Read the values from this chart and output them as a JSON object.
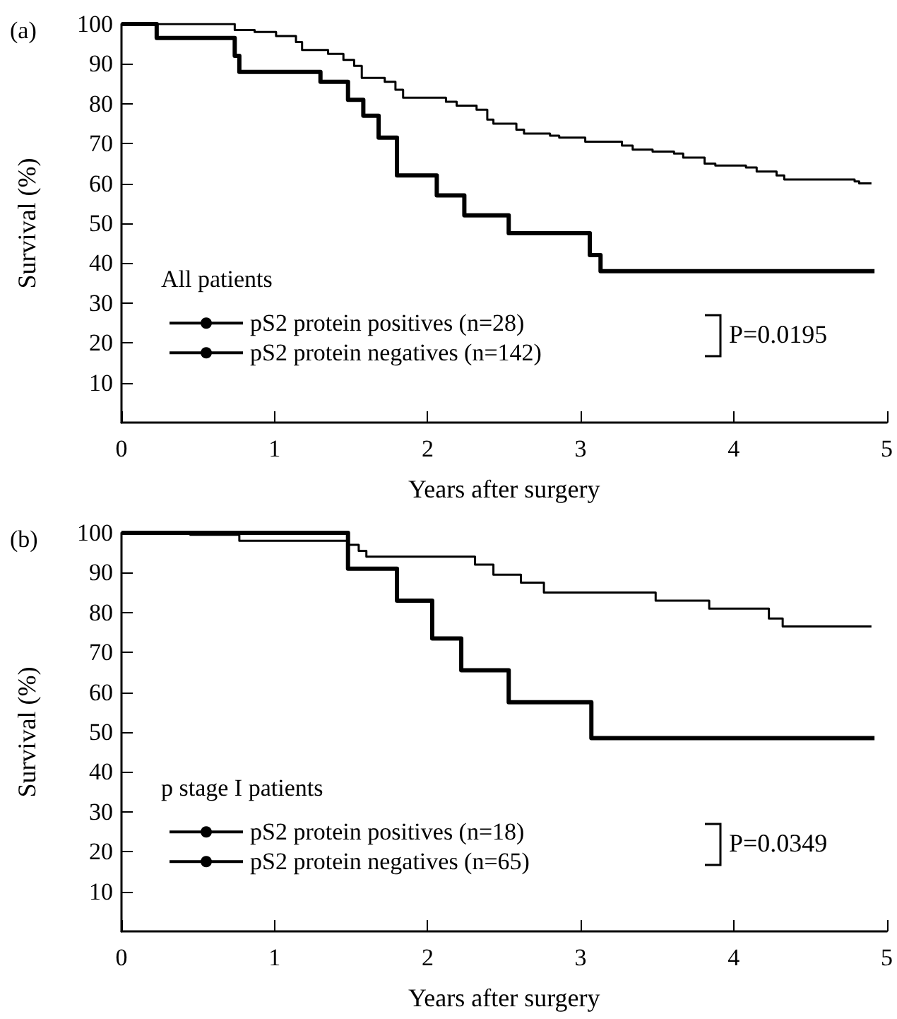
{
  "chart_data": [
    {
      "type": "step",
      "title": "(a)",
      "xlabel": "Years after surgery",
      "ylabel": "Survival (%)",
      "legend_title": "All patients",
      "legend": "bottom left",
      "annotations": [
        "P=0.0195"
      ],
      "xlim": [
        0,
        5
      ],
      "xticks": [
        0,
        1,
        2,
        3,
        4,
        5
      ],
      "ylim": [
        0,
        100
      ],
      "yticks": [
        10,
        20,
        30,
        40,
        50,
        60,
        70,
        80,
        90,
        100
      ],
      "grid": false,
      "marker": "none",
      "series": [
        {
          "name": "pS2 protein positives (n=28)",
          "color": "#000000",
          "x": [
            0,
            0.23,
            0.74,
            0.77,
            1.3,
            1.48,
            1.58,
            1.68,
            1.8,
            2.06,
            2.24,
            2.53,
            3.06,
            3.13,
            4.92
          ],
          "values": [
            100,
            96.5,
            92,
            88,
            85.5,
            81,
            77,
            71.5,
            62,
            57,
            52,
            47.5,
            42,
            38,
            38
          ]
        },
        {
          "name": "pS2 protein negatives (n=142)",
          "color": "#000000",
          "x": [
            0,
            0.74,
            0.87,
            1.01,
            1.14,
            1.18,
            1.35,
            1.45,
            1.52,
            1.57,
            1.72,
            1.79,
            1.84,
            2.12,
            2.19,
            2.32,
            2.39,
            2.43,
            2.58,
            2.63,
            2.8,
            2.86,
            3.03,
            3.27,
            3.34,
            3.47,
            3.61,
            3.67,
            3.81,
            3.88,
            4.08,
            4.15,
            4.28,
            4.33,
            4.79,
            4.82,
            4.9
          ],
          "values": [
            100,
            98.5,
            98,
            97,
            95.5,
            93.5,
            92.5,
            91,
            89.5,
            86.5,
            85.5,
            83.5,
            81.5,
            80.5,
            79.5,
            78.5,
            76,
            75,
            73.5,
            72.5,
            72,
            71.5,
            70.5,
            69.5,
            68.5,
            68,
            67.5,
            66.5,
            65,
            64.5,
            64,
            63,
            62,
            61,
            60.5,
            60,
            60
          ]
        }
      ]
    },
    {
      "type": "step",
      "title": "(b)",
      "xlabel": "Years after surgery",
      "ylabel": "Survival (%)",
      "legend_title": "p stage I patients",
      "legend": "bottom left",
      "annotations": [
        "P=0.0349"
      ],
      "xlim": [
        0,
        5
      ],
      "xticks": [
        0,
        1,
        2,
        3,
        4,
        5
      ],
      "ylim": [
        0,
        100
      ],
      "yticks": [
        10,
        20,
        30,
        40,
        50,
        60,
        70,
        80,
        90,
        100
      ],
      "grid": false,
      "marker": "none",
      "series": [
        {
          "name": "pS2 protein positives (n=18)",
          "color": "#000000",
          "x": [
            0,
            1.48,
            1.8,
            2.03,
            2.22,
            2.53,
            3.07,
            4.92
          ],
          "values": [
            100,
            91,
            83,
            73.5,
            65.5,
            57.5,
            48.5,
            48.5
          ]
        },
        {
          "name": "pS2 protein negatives (n=65)",
          "color": "#000000",
          "x": [
            0,
            0.45,
            0.77,
            1.48,
            1.55,
            1.6,
            2.31,
            2.43,
            2.61,
            2.76,
            3.49,
            3.84,
            4.23,
            4.32,
            4.9
          ],
          "values": [
            100,
            99.5,
            98,
            97,
            95.5,
            94,
            92,
            89.5,
            87.5,
            85,
            83,
            81,
            78.5,
            76.5,
            76.5
          ]
        }
      ]
    }
  ]
}
